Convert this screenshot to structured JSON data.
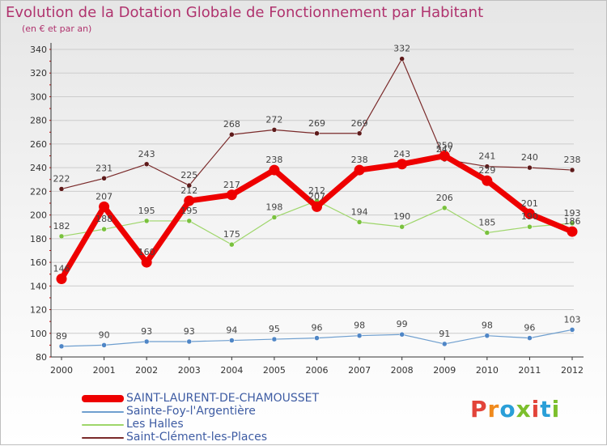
{
  "title": "Evolution de la Dotation Globale de Fonctionnement par Habitant",
  "subtitle": "(en € et par an)",
  "logo": {
    "text": "Proxiti",
    "letters": [
      {
        "ch": "P",
        "color": "#e2443a"
      },
      {
        "ch": "r",
        "color": "#f08a1d"
      },
      {
        "ch": "o",
        "color": "#2a9fd8"
      },
      {
        "ch": "x",
        "color": "#7cbf2c"
      },
      {
        "ch": "i",
        "color": "#e2443a"
      },
      {
        "ch": "t",
        "color": "#2a9fd8"
      },
      {
        "ch": "i",
        "color": "#7cbf2c"
      }
    ]
  },
  "colors": {
    "title": "#b0336e",
    "legend_text": "#3e5ca3",
    "axis": "#333333",
    "gridline": "#cccccc",
    "tick_marks": "#cc0000"
  },
  "chart_data": {
    "type": "line",
    "title": "Evolution de la Dotation Globale de Fonctionnement par Habitant",
    "xlabel": "",
    "ylabel": "(en € et par an)",
    "ylim": [
      80,
      340
    ],
    "yticks": [
      80,
      100,
      120,
      140,
      160,
      180,
      200,
      220,
      240,
      260,
      280,
      300,
      320,
      340
    ],
    "x": [
      "2000",
      "2001",
      "2002",
      "2003",
      "2004",
      "2005",
      "2006",
      "2007",
      "2008",
      "2009",
      "2010",
      "2011",
      "2012"
    ],
    "grid": true,
    "series": [
      {
        "name": "Saint-Clément-les-Places",
        "color": "#7a2a2a",
        "dot": "#5e1a1a",
        "width": 1.2,
        "r": 3,
        "values": [
          222,
          231,
          243,
          225,
          268,
          272,
          269,
          269,
          332,
          247,
          241,
          240,
          238
        ],
        "labels": [
          "222",
          "231",
          "243",
          "225",
          "268",
          "272",
          "269",
          "269",
          "332",
          "247",
          "241",
          "240",
          "238"
        ]
      },
      {
        "name": "Les Halles",
        "color": "#9ed66a",
        "dot": "#79c13d",
        "width": 1.2,
        "r": 3,
        "values": [
          182,
          188,
          195,
          195,
          175,
          198,
          212,
          194,
          190,
          206,
          185,
          190,
          193
        ],
        "labels": [
          "182",
          "188",
          "195",
          "195",
          "175",
          "198",
          "212",
          "194",
          "190",
          "206",
          "185",
          "190",
          "193"
        ]
      },
      {
        "name": "Sainte-Foy-l'Argentière",
        "color": "#6f9fcf",
        "dot": "#4f86c6",
        "width": 1.2,
        "r": 3,
        "values": [
          89,
          90,
          93,
          93,
          94,
          95,
          96,
          98,
          99,
          91,
          98,
          96,
          103
        ],
        "labels": [
          "89",
          "90",
          "93",
          "93",
          "94",
          "95",
          "96",
          "98",
          "99",
          "91",
          "98",
          "96",
          "103"
        ]
      },
      {
        "name": "SAINT-LAURENT-DE-CHAMOUSSET",
        "color": "#ee0000",
        "dot": "#ee0000",
        "width": 7,
        "r": 6.5,
        "values": [
          146,
          207,
          160,
          212,
          217,
          238,
          207,
          238,
          243,
          250,
          229,
          201,
          186
        ],
        "labels": [
          "146",
          "207",
          "160",
          "212",
          "217",
          "238",
          "207",
          "238",
          "243",
          "250",
          "229",
          "201",
          "186"
        ]
      }
    ],
    "legend": {
      "position": "bottom-left",
      "order": [
        "SAINT-LAURENT-DE-CHAMOUSSET",
        "Sainte-Foy-l'Argentière",
        "Les Halles",
        "Saint-Clément-les-Places"
      ]
    }
  }
}
